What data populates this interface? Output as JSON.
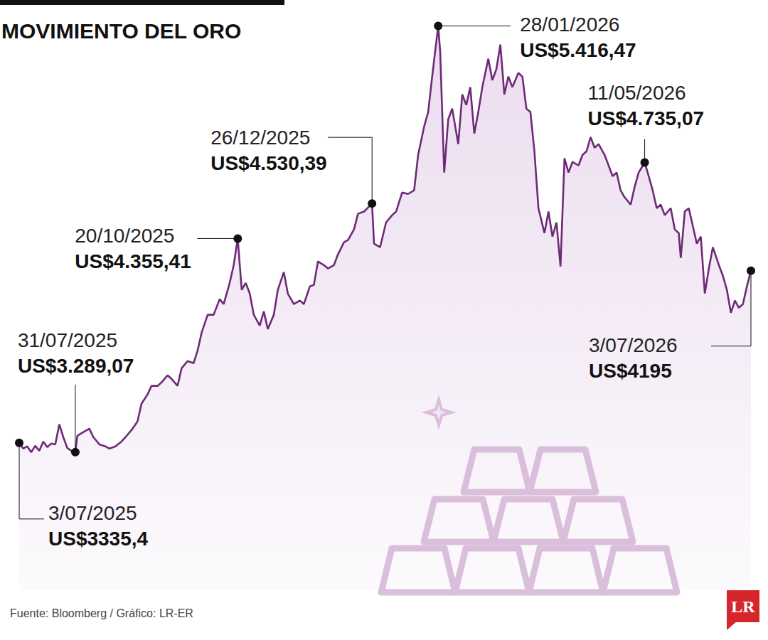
{
  "chart_data": {
    "type": "area",
    "title": "MOVIMIENTO DEL ORO",
    "source": "Fuente: Bloomberg / Gráfico: LR-ER",
    "logo": "LR",
    "color": "#6e2a77",
    "marker": "none",
    "grid": false,
    "tick_labels": false,
    "xlim": [
      "2025-07-03",
      "2026-07-03"
    ],
    "ylim": [
      2600,
      5500
    ],
    "x": [
      "2025-07-03",
      "2025-07-05",
      "2025-07-07",
      "2025-07-09",
      "2025-07-11",
      "2025-07-13",
      "2025-07-15",
      "2025-07-17",
      "2025-07-19",
      "2025-07-21",
      "2025-07-23",
      "2025-07-25",
      "2025-07-27",
      "2025-07-29",
      "2025-07-31",
      "2025-08-01",
      "2025-08-04",
      "2025-08-07",
      "2025-08-09",
      "2025-08-12",
      "2025-08-15",
      "2025-08-17",
      "2025-08-20",
      "2025-08-23",
      "2025-08-25",
      "2025-08-28",
      "2025-08-31",
      "2025-09-02",
      "2025-09-05",
      "2025-09-07",
      "2025-09-10",
      "2025-09-12",
      "2025-09-15",
      "2025-09-17",
      "2025-09-20",
      "2025-09-22",
      "2025-09-25",
      "2025-09-28",
      "2025-09-30",
      "2025-10-02",
      "2025-10-05",
      "2025-10-08",
      "2025-10-11",
      "2025-10-13",
      "2025-10-16",
      "2025-10-18",
      "2025-10-20",
      "2025-10-22",
      "2025-10-24",
      "2025-10-26",
      "2025-10-28",
      "2025-10-31",
      "2025-11-02",
      "2025-11-04",
      "2025-11-07",
      "2025-11-09",
      "2025-11-12",
      "2025-11-14",
      "2025-11-17",
      "2025-11-20",
      "2025-11-22",
      "2025-11-25",
      "2025-11-27",
      "2025-11-29",
      "2025-12-02",
      "2025-12-04",
      "2025-12-07",
      "2025-12-09",
      "2025-12-12",
      "2025-12-14",
      "2025-12-17",
      "2025-12-19",
      "2025-12-22",
      "2025-12-26",
      "2025-12-27",
      "2025-12-30",
      "2026-01-02",
      "2026-01-05",
      "2026-01-07",
      "2026-01-10",
      "2026-01-13",
      "2026-01-16",
      "2026-01-18",
      "2026-01-21",
      "2026-01-23",
      "2026-01-25",
      "2026-01-28",
      "2026-01-29",
      "2026-01-31",
      "2026-02-02",
      "2026-02-04",
      "2026-02-07",
      "2026-02-09",
      "2026-02-11",
      "2026-02-13",
      "2026-02-15",
      "2026-02-17",
      "2026-02-19",
      "2026-02-22",
      "2026-02-24",
      "2026-02-26",
      "2026-02-28",
      "2026-03-02",
      "2026-03-04",
      "2026-03-06",
      "2026-03-09",
      "2026-03-11",
      "2026-03-13",
      "2026-03-15",
      "2026-03-17",
      "2026-03-19",
      "2026-03-22",
      "2026-03-24",
      "2026-03-26",
      "2026-03-28",
      "2026-03-30",
      "2026-04-01",
      "2026-04-03",
      "2026-04-05",
      "2026-04-08",
      "2026-04-10",
      "2026-04-12",
      "2026-04-14",
      "2026-04-16",
      "2026-04-18",
      "2026-04-21",
      "2026-04-23",
      "2026-04-25",
      "2026-04-27",
      "2026-04-29",
      "2026-05-01",
      "2026-05-04",
      "2026-05-06",
      "2026-05-08",
      "2026-05-11",
      "2026-05-13",
      "2026-05-15",
      "2026-05-17",
      "2026-05-19",
      "2026-05-21",
      "2026-05-24",
      "2026-05-26",
      "2026-05-28",
      "2026-05-29",
      "2026-05-31",
      "2026-06-02",
      "2026-06-04",
      "2026-06-06",
      "2026-06-08",
      "2026-06-10",
      "2026-06-12",
      "2026-06-14",
      "2026-06-17",
      "2026-06-19",
      "2026-06-21",
      "2026-06-23",
      "2026-06-25",
      "2026-06-27",
      "2026-06-29",
      "2026-07-01",
      "2026-07-03"
    ],
    "values": [
      3335.4,
      3307,
      3318,
      3289,
      3321,
      3296,
      3342,
      3314,
      3332,
      3328,
      3428,
      3364,
      3310,
      3296,
      3289.07,
      3371,
      3389,
      3406,
      3364,
      3328,
      3318,
      3307,
      3318,
      3342,
      3364,
      3399,
      3442,
      3531,
      3577,
      3620,
      3620,
      3637,
      3673,
      3655,
      3620,
      3708,
      3744,
      3733,
      3797,
      3886,
      3975,
      3975,
      4053,
      4028,
      4134,
      4223,
      4355.41,
      4099,
      4134,
      4081,
      3975,
      3921,
      3992,
      3904,
      3975,
      4099,
      4188,
      4081,
      4028,
      4046,
      4028,
      4117,
      4124,
      4241,
      4223,
      4206,
      4223,
      4276,
      4337,
      4348,
      4401,
      4479,
      4490,
      4530.39,
      4330,
      4312,
      4436,
      4472,
      4490,
      4585,
      4578,
      4596,
      4773,
      4915,
      4987,
      5164,
      5416.47,
      5288,
      4685,
      4951,
      5004,
      4827,
      5075,
      5022,
      5111,
      4880,
      4987,
      5111,
      5253,
      5146,
      5200,
      5324,
      5075,
      5164,
      5111,
      5182,
      5164,
      5004,
      4987,
      4791,
      4507,
      4383,
      4490,
      4365,
      4436,
      4216,
      4756,
      4685,
      4738,
      4720,
      4773,
      4791,
      4862,
      4809,
      4827,
      4773,
      4720,
      4667,
      4685,
      4596,
      4561,
      4525,
      4614,
      4685,
      4735.07,
      4667,
      4596,
      4507,
      4525,
      4472,
      4507,
      4401,
      4383,
      4259,
      4490,
      4507,
      4419,
      4330,
      4365,
      4081,
      4205,
      4312,
      4223,
      4170,
      4099,
      3985,
      4046,
      4010,
      4028,
      4117,
      4195
    ],
    "annotations": [
      {
        "x": "2025-07-03",
        "value": 3335.4,
        "date": "3/07/2025",
        "label": "US$3335,4"
      },
      {
        "x": "2025-07-31",
        "value": 3289.07,
        "date": "31/07/2025",
        "label": "US$3.289,07"
      },
      {
        "x": "2025-10-20",
        "value": 4355.41,
        "date": "20/10/2025",
        "label": "US$4.355,41"
      },
      {
        "x": "2025-12-26",
        "value": 4530.39,
        "date": "26/12/2025",
        "label": "US$4.530,39"
      },
      {
        "x": "2026-01-28",
        "value": 5416.47,
        "date": "28/01/2026",
        "label": "US$5.416,47"
      },
      {
        "x": "2026-05-11",
        "value": 4735.07,
        "date": "11/05/2026",
        "label": "US$4.735,07"
      },
      {
        "x": "2026-07-03",
        "value": 4195,
        "date": "3/07/2026",
        "label": "US$4195"
      }
    ]
  }
}
